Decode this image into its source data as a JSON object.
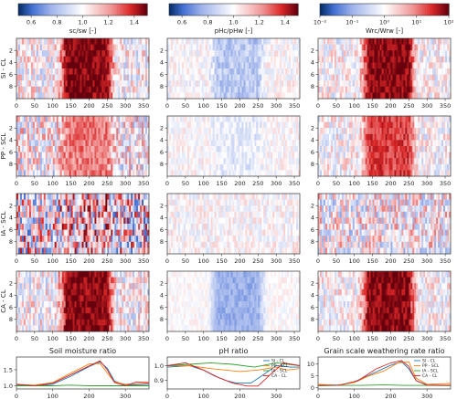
{
  "colors": {
    "neg": "#08306b",
    "mid": "#ffffff",
    "pos": "#67000d",
    "series": [
      "#1f77b4",
      "#ff7f0e",
      "#2ca02c",
      "#d62728"
    ]
  },
  "colorbars": [
    {
      "label": "sᴄ/sᴡ [-]",
      "ticks": [
        "0.6",
        "0.8",
        "1.0",
        "1.2",
        "1.4"
      ],
      "tick_vals": [
        0.6,
        0.8,
        1.0,
        1.2,
        1.4
      ],
      "range": [
        0.5,
        1.5
      ]
    },
    {
      "label": "pHᴄ/pHᴡ [-]",
      "ticks": [
        "0.6",
        "0.8",
        "1.0",
        "1.2",
        "1.4"
      ],
      "tick_vals": [
        0.6,
        0.8,
        1.0,
        1.2,
        1.4
      ],
      "range": [
        0.5,
        1.5
      ]
    },
    {
      "label": "Wrᴄ/Wrᴡ [-]",
      "ticks": [
        "10⁻²",
        "10⁻¹",
        "10⁰",
        "10¹",
        "10²"
      ],
      "tick_vals": [
        -2,
        -1,
        0,
        1,
        2
      ],
      "range": [
        -2,
        2
      ],
      "log": true
    }
  ],
  "rows": [
    "SI - CL",
    "PP - SCL",
    "IA - SCL",
    "CA - CL"
  ],
  "x_ticks": [
    "0",
    "50",
    "100",
    "150",
    "200",
    "250",
    "300",
    "350"
  ],
  "y_ticks": [
    "2",
    "4",
    "6",
    "8"
  ],
  "chart_data": [
    {
      "type": "heatmap",
      "description": "10 depth rows x 365 days per panel; ratio fields",
      "xlim": [
        0,
        365
      ],
      "ylim": [
        0,
        10
      ],
      "rows": 4,
      "cols": 3
    }
  ],
  "line_panels": [
    {
      "title": "Soil moisture ratio",
      "yticks": [
        "1.0",
        "1.5"
      ],
      "ytick_vals": [
        1.0,
        1.5
      ],
      "ylim": [
        0.9,
        1.9
      ],
      "xticks": [
        "0",
        "100",
        "200",
        "300"
      ],
      "legend": [],
      "series": [
        {
          "name": "SI - CL",
          "points": [
            [
              0,
              1.02
            ],
            [
              50,
              1.0
            ],
            [
              100,
              1.05
            ],
            [
              150,
              1.3
            ],
            [
              200,
              1.6
            ],
            [
              230,
              1.75
            ],
            [
              250,
              1.55
            ],
            [
              270,
              1.15
            ],
            [
              300,
              1.02
            ],
            [
              365,
              1.05
            ]
          ]
        },
        {
          "name": "PP - SCL",
          "points": [
            [
              0,
              1.04
            ],
            [
              50,
              1.02
            ],
            [
              100,
              1.1
            ],
            [
              150,
              1.4
            ],
            [
              200,
              1.68
            ],
            [
              230,
              1.7
            ],
            [
              250,
              1.4
            ],
            [
              270,
              1.12
            ],
            [
              300,
              1.05
            ],
            [
              365,
              1.08
            ]
          ]
        },
        {
          "name": "IA - SCL",
          "points": [
            [
              0,
              1.0
            ],
            [
              50,
              1.0
            ],
            [
              100,
              1.0
            ],
            [
              150,
              1.02
            ],
            [
              200,
              1.0
            ],
            [
              250,
              1.0
            ],
            [
              300,
              1.0
            ],
            [
              365,
              1.0
            ]
          ]
        },
        {
          "name": "CA - CL",
          "points": [
            [
              0,
              1.05
            ],
            [
              50,
              1.0
            ],
            [
              100,
              1.08
            ],
            [
              150,
              1.35
            ],
            [
              200,
              1.62
            ],
            [
              230,
              1.78
            ],
            [
              250,
              1.5
            ],
            [
              270,
              1.1
            ],
            [
              300,
              1.0
            ],
            [
              330,
              1.12
            ],
            [
              365,
              1.1
            ]
          ]
        }
      ]
    },
    {
      "title": "pH ratio",
      "yticks": [
        "0.9",
        "1.0"
      ],
      "ytick_vals": [
        0.9,
        1.0
      ],
      "ylim": [
        0.84,
        1.06
      ],
      "xticks": [
        "0",
        "100",
        "200",
        "300"
      ],
      "legend": [
        "SI - CL",
        "PP - SCL",
        "IA - SCL",
        "CA - CL"
      ],
      "series": [
        {
          "name": "SI - CL",
          "points": [
            [
              0,
              0.99
            ],
            [
              60,
              1.0
            ],
            [
              100,
              0.97
            ],
            [
              130,
              0.93
            ],
            [
              160,
              0.9
            ],
            [
              190,
              0.88
            ],
            [
              230,
              0.88
            ],
            [
              260,
              0.93
            ],
            [
              300,
              1.0
            ],
            [
              340,
              0.99
            ],
            [
              365,
              0.99
            ]
          ]
        },
        {
          "name": "PP - SCL",
          "points": [
            [
              0,
              1.0
            ],
            [
              60,
              1.0
            ],
            [
              120,
              0.98
            ],
            [
              200,
              0.96
            ],
            [
              250,
              0.97
            ],
            [
              300,
              0.99
            ],
            [
              330,
              0.97
            ],
            [
              365,
              0.98
            ]
          ]
        },
        {
          "name": "IA - SCL",
          "points": [
            [
              0,
              1.0
            ],
            [
              60,
              1.01
            ],
            [
              120,
              1.02
            ],
            [
              180,
              1.01
            ],
            [
              240,
              0.99
            ],
            [
              300,
              1.02
            ],
            [
              365,
              1.0
            ]
          ]
        },
        {
          "name": "CA - CL",
          "points": [
            [
              0,
              1.0
            ],
            [
              50,
              1.02
            ],
            [
              100,
              0.97
            ],
            [
              140,
              0.92
            ],
            [
              180,
              0.88
            ],
            [
              220,
              0.86
            ],
            [
              250,
              0.86
            ],
            [
              280,
              0.93
            ],
            [
              320,
              1.02
            ],
            [
              365,
              1.0
            ]
          ]
        }
      ]
    },
    {
      "title": "Grain scale weathering rate ratio",
      "yticks": [
        "0",
        "5",
        "10"
      ],
      "ytick_vals": [
        0,
        5,
        10
      ],
      "ylim": [
        -0.5,
        13
      ],
      "xticks": [
        "0",
        "100",
        "200",
        "300"
      ],
      "legend": [
        "SI - CL",
        "PP - SCL",
        "IA - SCL",
        "CA - CL"
      ],
      "series": [
        {
          "name": "SI - CL",
          "points": [
            [
              0,
              1.0
            ],
            [
              60,
              1.2
            ],
            [
              100,
              2.5
            ],
            [
              150,
              6
            ],
            [
              200,
              9.5
            ],
            [
              230,
              11
            ],
            [
              250,
              8
            ],
            [
              270,
              3
            ],
            [
              300,
              1.2
            ],
            [
              365,
              1.0
            ]
          ]
        },
        {
          "name": "PP - SCL",
          "points": [
            [
              0,
              1.5
            ],
            [
              50,
              1.0
            ],
            [
              100,
              2.2
            ],
            [
              140,
              5
            ],
            [
              180,
              7
            ],
            [
              220,
              10.5
            ],
            [
              250,
              11
            ],
            [
              270,
              4
            ],
            [
              300,
              1.5
            ],
            [
              365,
              1.8
            ]
          ]
        },
        {
          "name": "IA - SCL",
          "points": [
            [
              0,
              0.8
            ],
            [
              60,
              1.0
            ],
            [
              120,
              1.0
            ],
            [
              180,
              1.2
            ],
            [
              240,
              1.0
            ],
            [
              300,
              1.0
            ],
            [
              365,
              0.9
            ]
          ]
        },
        {
          "name": "CA - CL",
          "points": [
            [
              0,
              1.0
            ],
            [
              60,
              1.1
            ],
            [
              110,
              3
            ],
            [
              160,
              8
            ],
            [
              200,
              10.5
            ],
            [
              230,
              11.5
            ],
            [
              250,
              9
            ],
            [
              270,
              3
            ],
            [
              300,
              1.0
            ],
            [
              365,
              1.1
            ]
          ]
        }
      ]
    }
  ]
}
